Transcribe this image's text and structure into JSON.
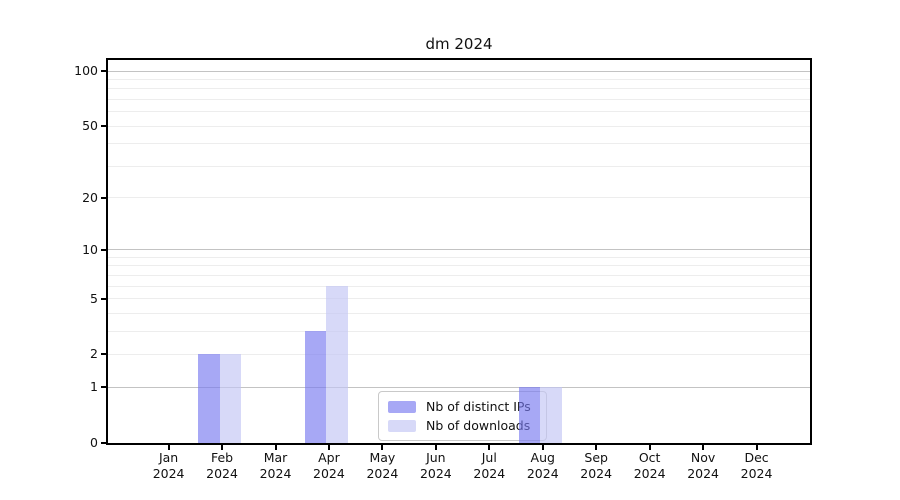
{
  "chart_data": {
    "type": "bar",
    "title": "dm 2024",
    "categories": [
      "Jan",
      "Feb",
      "Mar",
      "Apr",
      "May",
      "Jun",
      "Jul",
      "Aug",
      "Sep",
      "Oct",
      "Nov",
      "Dec"
    ],
    "year_label": "2024",
    "series": [
      {
        "name": "Nb of distinct IPs",
        "color": "#787af0",
        "values": [
          0,
          2,
          0,
          3,
          0,
          0,
          0,
          1,
          0,
          0,
          0,
          0
        ]
      },
      {
        "name": "Nb of downloads",
        "color": "#c2c4f4",
        "values": [
          0,
          2,
          0,
          6,
          0,
          0,
          0,
          1,
          0,
          0,
          0,
          0
        ]
      }
    ],
    "y_axis": {
      "ticks": [
        0,
        1,
        2,
        5,
        10,
        20,
        50,
        100
      ],
      "scale": "log1p",
      "ymax": 115,
      "major_gridlines": [
        1,
        10,
        100
      ],
      "minor_gridlines": [
        2,
        3,
        4,
        5,
        6,
        7,
        8,
        9,
        20,
        30,
        40,
        50,
        60,
        70,
        80,
        90
      ]
    },
    "legend": {
      "position": "lower center"
    },
    "colors": {
      "major_grid": "#c3c3c3",
      "minor_grid": "#ededed",
      "axis": "#000000",
      "bar_alpha": 0.65
    }
  }
}
